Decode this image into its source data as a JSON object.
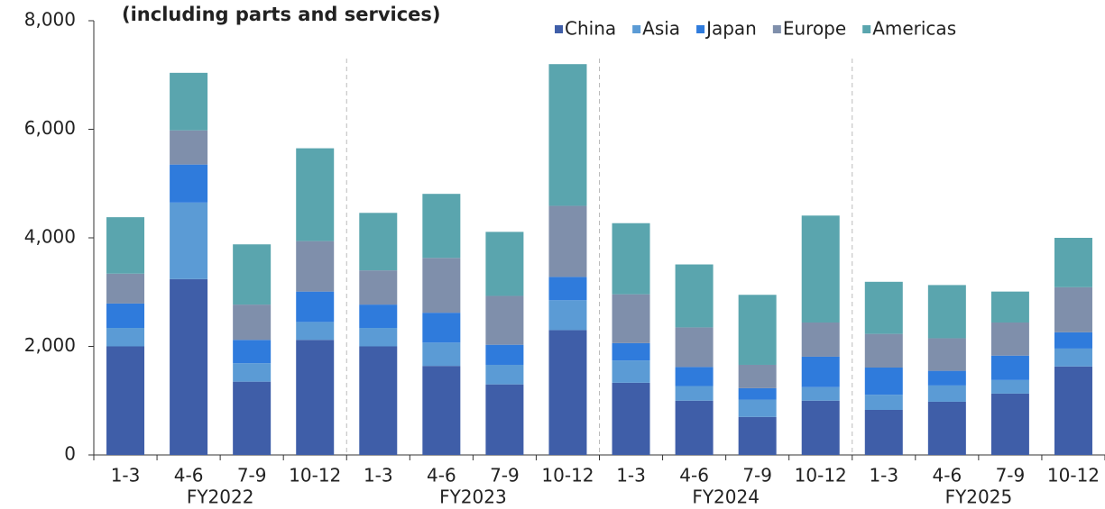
{
  "chart_data": {
    "type": "stacked_bar",
    "title": "(including parts and services)",
    "categories": [
      "1-3",
      "4-6",
      "7-9",
      "10-12",
      "1-3",
      "4-6",
      "7-9",
      "10-12",
      "1-3",
      "4-6",
      "7-9",
      "10-12",
      "1-3",
      "4-6",
      "7-9",
      "10-12"
    ],
    "groups": [
      "FY2022",
      "FY2023",
      "FY2024",
      "FY2025"
    ],
    "series": [
      {
        "name": "China",
        "color": "#3f5ea8",
        "values": [
          2000,
          3240,
          1350,
          2120,
          2000,
          1640,
          1300,
          2300,
          1330,
          1000,
          700,
          1000,
          830,
          980,
          1130,
          1630
        ]
      },
      {
        "name": "Asia",
        "color": "#5b9bd5",
        "values": [
          340,
          1410,
          340,
          330,
          340,
          430,
          360,
          550,
          410,
          270,
          320,
          250,
          280,
          300,
          250,
          330
        ]
      },
      {
        "name": "Japan",
        "color": "#2f7bdc",
        "values": [
          450,
          700,
          430,
          560,
          430,
          550,
          370,
          430,
          320,
          350,
          210,
          560,
          500,
          270,
          450,
          300
        ]
      },
      {
        "name": "Europe",
        "color": "#7f8fab",
        "values": [
          550,
          630,
          650,
          930,
          630,
          1010,
          900,
          1310,
          900,
          730,
          430,
          630,
          620,
          600,
          610,
          830
        ]
      },
      {
        "name": "Americas",
        "color": "#5aa5ae",
        "values": [
          1040,
          1060,
          1110,
          1710,
          1060,
          1180,
          1180,
          2610,
          1310,
          1160,
          1290,
          1970,
          960,
          980,
          570,
          910
        ]
      }
    ],
    "ylim": [
      0,
      8000
    ],
    "yticks": [
      0,
      {
        "value": 2000,
        "label": "2,000"
      },
      {
        "value": 4000,
        "label": "4,000"
      },
      {
        "value": 6000,
        "label": "6,000"
      },
      {
        "value": 8000,
        "label": "8,000"
      }
    ],
    "legend": "top-right"
  }
}
